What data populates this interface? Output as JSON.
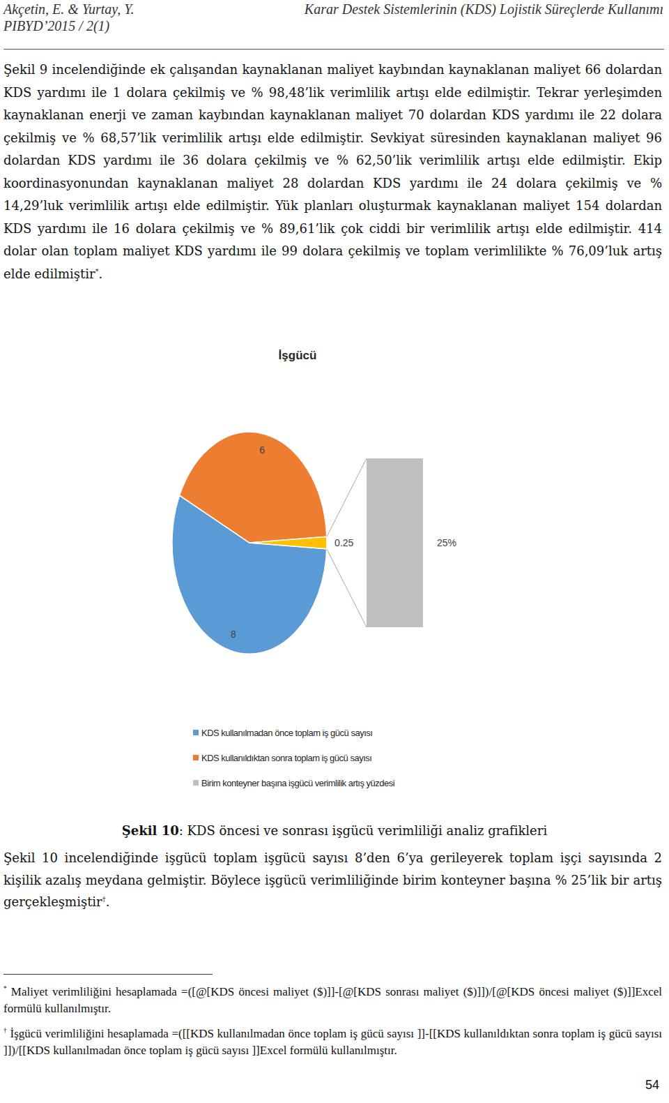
{
  "header": {
    "authors": "Akçetin, E. & Yurtay, Y.",
    "journal": "PIBYD’2015 / 2(1)",
    "running_title": "Karar Destek Sistemlerinin (KDS) Lojistik Süreçlerde Kullanımı"
  },
  "paragraphs": [
    {
      "text": "Şekil 9 incelendiğinde ek çalışandan kaynaklanan maliyet kaybından kaynaklanan maliyet 66 dolardan KDS yardımı ile 1 dolara çekilmiş ve % 98,48’lik verimlilik artışı elde edilmiştir. Tekrar yerleşimden kaynaklanan enerji ve zaman kaybından kaynaklanan maliyet 70 dolardan KDS yardımı ile 22 dolara çekilmiş ve % 68,57’lik verimlilik artışı elde edilmiştir. Sevkiyat süresinden kaynaklanan maliyet 96 dolardan KDS yardımı ile 36 dolara çekilmiş ve % 62,50’lik verimlilik artışı elde edilmiştir. Ekip koordinasyonundan kaynaklanan maliyet 28 dolardan KDS yardımı ile 24 dolara çekilmiş ve % 14,29’luk verimlilik artışı elde edilmiştir. Yük planları oluşturmak kaynaklanan maliyet 154 dolardan KDS yardımı ile 16 dolara çekilmiş ve % 89,61’lik çok ciddi bir verimlilik artışı elde edilmiştir. 414 dolar olan toplam maliyet KDS yardımı ile 99 dolara çekilmiş ve toplam verimlilikte % 76,09’luk artış elde edilmiştir",
      "note": "*",
      "after": "."
    }
  ],
  "chart_data": {
    "type": "pie",
    "title": "İşgücü",
    "categories": [
      "KDS kullanılmadan önce toplam iş gücü sayısı",
      "KDS kullanıldıktan sonra toplam iş gücü sayısı",
      "Birim konteyner başına işgücü verimlilik artış yüzdesi"
    ],
    "values": [
      8,
      6,
      0.25
    ],
    "colors": [
      "#5b9bd5",
      "#ed7d31",
      "#ffc000"
    ],
    "data_labels": true,
    "legend": "bottom",
    "breakout_values": [
      25
    ],
    "breakout_value_labels": [
      "25%"
    ]
  },
  "caption": {
    "label": "Şekil 10",
    "text": ": KDS öncesi ve sonrası işgücü verimliliği analiz grafikleri"
  },
  "paragraphs_after": [
    {
      "text": "Şekil 10 incelendiğinde işgücü toplam işgücü sayısı 8’den 6’ya gerileyerek toplam işçi sayısında 2 kişilik azalış meydana gelmiştir. Böylece işgücü verimliliğinde birim konteyner başına % 25’lik bir artış gerçekleşmiştir",
      "note": "†",
      "after": "."
    }
  ],
  "footnotes": [
    {
      "mark": "*",
      "text": "Maliyet verimliliğini hesaplamada =([@[KDS öncesi maliyet ($)]]-[@[KDS sonrası maliyet ($)]])/[@[KDS öncesi maliyet ($)]]Excel formülü kullanılmıştır."
    },
    {
      "mark": "†",
      "text": "İşgücü verimliliğini hesaplamada =([[KDS kullanılmadan önce toplam iş gücü sayısı ]]-[[KDS kullanıldıktan sonra toplam iş gücü sayısı ]])/[[KDS kullanılmadan önce toplam iş gücü sayısı ]]Excel formülü kullanılmıştır."
    }
  ],
  "page_number": "54"
}
